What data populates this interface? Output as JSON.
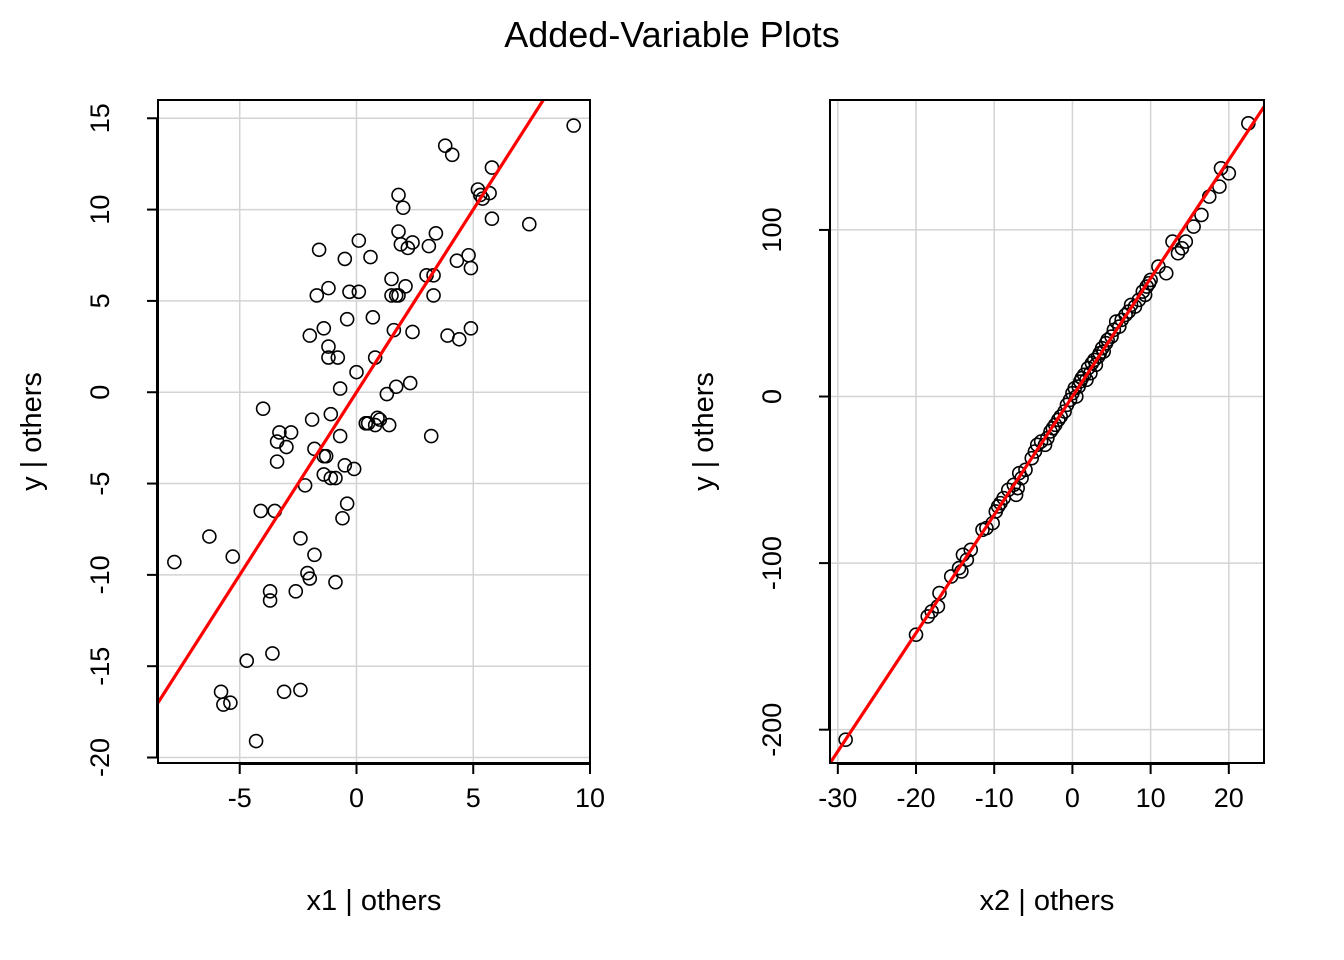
{
  "title": "Added-Variable Plots",
  "colors": {
    "points": "#000000",
    "fit_line": "#ff0000",
    "grid": "#d3d3d3"
  },
  "chart_data": [
    {
      "type": "scatter",
      "xlabel": "x1 | others",
      "ylabel": "y  | others",
      "xlim": [
        -8.5,
        10
      ],
      "ylim": [
        -20.3,
        16
      ],
      "xticks": [
        -5,
        0,
        5,
        10
      ],
      "yticks": [
        -20,
        -15,
        -10,
        -5,
        0,
        5,
        10,
        15
      ],
      "tick_labels_x": [
        "-5",
        "0",
        "5",
        "10"
      ],
      "tick_labels_y": [
        "-20",
        "-15",
        "-10",
        "-5",
        "0",
        "5",
        "10",
        "15"
      ],
      "grid": true,
      "fit_line": {
        "slope": 2.0,
        "intercept": 0.0
      },
      "points": [
        [
          -7.8,
          -9.3
        ],
        [
          -6.3,
          -7.9
        ],
        [
          -5.8,
          -16.4
        ],
        [
          -5.7,
          -17.1
        ],
        [
          -5.4,
          -17.0
        ],
        [
          -5.3,
          -9.0
        ],
        [
          -4.7,
          -14.7
        ],
        [
          -4.3,
          -19.1
        ],
        [
          -4.1,
          -6.5
        ],
        [
          -4.0,
          -0.9
        ],
        [
          -3.7,
          -10.9
        ],
        [
          -3.7,
          -11.4
        ],
        [
          -3.6,
          -14.3
        ],
        [
          -3.5,
          -6.5
        ],
        [
          -3.4,
          -3.8
        ],
        [
          -3.4,
          -2.7
        ],
        [
          -3.3,
          -2.2
        ],
        [
          -3.1,
          -16.4
        ],
        [
          -3.0,
          -3.0
        ],
        [
          -2.8,
          -2.2
        ],
        [
          -2.6,
          -10.9
        ],
        [
          -2.4,
          -16.3
        ],
        [
          -2.4,
          -8.0
        ],
        [
          -2.2,
          -5.1
        ],
        [
          -2.1,
          -9.9
        ],
        [
          -2.0,
          -10.2
        ],
        [
          -2.0,
          3.1
        ],
        [
          -1.9,
          -1.5
        ],
        [
          -1.8,
          -8.9
        ],
        [
          -1.8,
          -3.1
        ],
        [
          -1.7,
          5.3
        ],
        [
          -1.6,
          7.8
        ],
        [
          -1.4,
          -3.5
        ],
        [
          -1.4,
          -4.5
        ],
        [
          -1.4,
          3.5
        ],
        [
          -1.3,
          -3.5
        ],
        [
          -1.2,
          5.7
        ],
        [
          -1.2,
          2.5
        ],
        [
          -1.2,
          1.9
        ],
        [
          -1.1,
          -1.2
        ],
        [
          -1.1,
          -4.7
        ],
        [
          -0.9,
          -4.7
        ],
        [
          -0.9,
          -10.4
        ],
        [
          -0.8,
          1.9
        ],
        [
          -0.7,
          0.2
        ],
        [
          -0.7,
          -2.4
        ],
        [
          -0.6,
          -6.9
        ],
        [
          -0.5,
          7.3
        ],
        [
          -0.5,
          -4.0
        ],
        [
          -0.4,
          4.0
        ],
        [
          -0.4,
          -6.1
        ],
        [
          -0.3,
          5.5
        ],
        [
          -0.1,
          -4.2
        ],
        [
          0.0,
          1.1
        ],
        [
          0.1,
          5.5
        ],
        [
          0.1,
          8.3
        ],
        [
          0.4,
          -1.7
        ],
        [
          0.4,
          -1.7
        ],
        [
          0.5,
          -1.7
        ],
        [
          0.6,
          7.4
        ],
        [
          0.7,
          4.1
        ],
        [
          0.8,
          -1.8
        ],
        [
          0.8,
          1.9
        ],
        [
          0.9,
          -1.4
        ],
        [
          1.0,
          -1.5
        ],
        [
          1.3,
          -0.1
        ],
        [
          1.4,
          -1.8
        ],
        [
          1.5,
          5.3
        ],
        [
          1.5,
          6.2
        ],
        [
          1.6,
          3.4
        ],
        [
          1.7,
          0.3
        ],
        [
          1.7,
          5.3
        ],
        [
          1.8,
          5.3
        ],
        [
          1.8,
          10.8
        ],
        [
          1.8,
          8.8
        ],
        [
          1.9,
          8.1
        ],
        [
          2.0,
          10.1
        ],
        [
          2.1,
          5.8
        ],
        [
          2.2,
          7.9
        ],
        [
          2.3,
          0.5
        ],
        [
          2.4,
          8.2
        ],
        [
          2.4,
          3.3
        ],
        [
          3.0,
          6.4
        ],
        [
          3.1,
          8.0
        ],
        [
          3.2,
          -2.4
        ],
        [
          3.3,
          5.3
        ],
        [
          3.3,
          6.4
        ],
        [
          3.4,
          8.7
        ],
        [
          3.8,
          13.5
        ],
        [
          3.9,
          3.1
        ],
        [
          4.1,
          13.0
        ],
        [
          4.3,
          7.2
        ],
        [
          4.4,
          2.9
        ],
        [
          4.8,
          7.5
        ],
        [
          4.9,
          6.8
        ],
        [
          4.9,
          3.5
        ],
        [
          5.2,
          11.1
        ],
        [
          5.3,
          10.8
        ],
        [
          5.4,
          10.6
        ],
        [
          5.7,
          10.9
        ],
        [
          5.8,
          12.3
        ],
        [
          5.8,
          9.5
        ],
        [
          7.4,
          9.2
        ],
        [
          9.3,
          14.6
        ]
      ]
    },
    {
      "type": "scatter",
      "xlabel": "x2 | others",
      "ylabel": "y  | others",
      "xlim": [
        -31,
        24.5
      ],
      "ylim": [
        -220,
        178
      ],
      "xticks": [
        -30,
        -20,
        -10,
        0,
        10,
        20
      ],
      "yticks": [
        -200,
        -100,
        0,
        100
      ],
      "tick_labels_x": [
        "-30",
        "-20",
        "-10",
        "0",
        "10",
        "20"
      ],
      "tick_labels_y": [
        "-200",
        "-100",
        "0",
        "100"
      ],
      "grid": true,
      "fit_line": {
        "slope": 7.1,
        "intercept": 0.0
      },
      "points": [
        [
          -29.0,
          -206
        ],
        [
          -20.0,
          -143
        ],
        [
          -18.5,
          -132
        ],
        [
          -18.0,
          -129
        ],
        [
          -17.2,
          -126
        ],
        [
          -17.0,
          -118
        ],
        [
          -15.5,
          -108
        ],
        [
          -14.5,
          -103
        ],
        [
          -14.2,
          -105
        ],
        [
          -14.0,
          -95
        ],
        [
          -13.5,
          -98
        ],
        [
          -13.0,
          -92
        ],
        [
          -11.5,
          -80
        ],
        [
          -11.0,
          -79
        ],
        [
          -10.2,
          -76
        ],
        [
          -9.8,
          -69
        ],
        [
          -9.5,
          -66
        ],
        [
          -9.2,
          -64
        ],
        [
          -8.8,
          -61
        ],
        [
          -8.2,
          -56
        ],
        [
          -7.5,
          -53
        ],
        [
          -7.2,
          -59
        ],
        [
          -7.0,
          -55
        ],
        [
          -6.8,
          -46
        ],
        [
          -6.5,
          -49
        ],
        [
          -6.0,
          -44
        ],
        [
          -5.2,
          -37
        ],
        [
          -4.8,
          -33
        ],
        [
          -4.5,
          -29
        ],
        [
          -4.0,
          -27
        ],
        [
          -3.5,
          -29
        ],
        [
          -3.2,
          -25
        ],
        [
          -2.8,
          -21
        ],
        [
          -2.5,
          -19
        ],
        [
          -2.2,
          -17
        ],
        [
          -1.8,
          -14
        ],
        [
          -1.5,
          -12
        ],
        [
          -1.0,
          -9
        ],
        [
          -0.7,
          -5
        ],
        [
          -0.3,
          -2
        ],
        [
          0.0,
          2
        ],
        [
          0.3,
          5
        ],
        [
          0.5,
          0
        ],
        [
          0.8,
          6
        ],
        [
          1.0,
          9
        ],
        [
          1.2,
          11
        ],
        [
          1.5,
          13
        ],
        [
          1.8,
          10
        ],
        [
          2.0,
          17
        ],
        [
          2.3,
          14
        ],
        [
          2.5,
          20
        ],
        [
          2.8,
          22
        ],
        [
          3.0,
          19
        ],
        [
          3.3,
          24
        ],
        [
          3.5,
          26
        ],
        [
          3.8,
          29
        ],
        [
          4.0,
          27
        ],
        [
          4.3,
          32
        ],
        [
          4.5,
          34
        ],
        [
          5.0,
          36
        ],
        [
          5.3,
          40
        ],
        [
          5.6,
          45
        ],
        [
          6.0,
          42
        ],
        [
          6.3,
          46
        ],
        [
          6.8,
          49
        ],
        [
          7.2,
          51
        ],
        [
          7.5,
          55
        ],
        [
          8.0,
          54
        ],
        [
          8.5,
          58
        ],
        [
          9.0,
          63
        ],
        [
          9.3,
          61
        ],
        [
          9.5,
          66
        ],
        [
          9.8,
          68
        ],
        [
          10.0,
          70
        ],
        [
          11.0,
          78
        ],
        [
          12.0,
          74
        ],
        [
          12.8,
          93
        ],
        [
          13.5,
          86
        ],
        [
          14.0,
          89
        ],
        [
          14.5,
          93
        ],
        [
          15.5,
          102
        ],
        [
          16.5,
          109
        ],
        [
          17.5,
          120
        ],
        [
          18.8,
          126
        ],
        [
          19.0,
          137
        ],
        [
          20.0,
          134
        ],
        [
          22.5,
          164
        ]
      ]
    }
  ]
}
